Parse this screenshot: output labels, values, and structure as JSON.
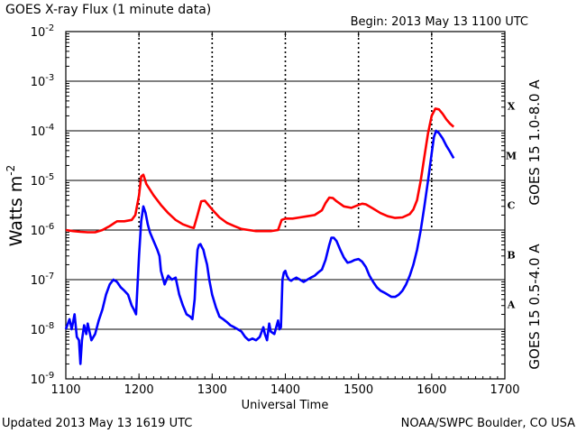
{
  "header": {
    "title": "GOES X-ray Flux (1 minute data)",
    "begin": "Begin: 2013 May 13 1100 UTC"
  },
  "footer": {
    "updated": "Updated 2013 May 13 1619 UTC",
    "credit": "NOAA/SWPC Boulder, CO USA"
  },
  "chart_data": {
    "type": "line",
    "title": "GOES X-ray Flux (1 minute data)",
    "xlabel": "Universal Time",
    "ylabel": "Watts m",
    "ylabel_sup": "-2",
    "yscale": "log",
    "xlim": [
      1100,
      1700
    ],
    "ylim": [
      1e-09,
      0.01
    ],
    "x_ticks": [
      "1100",
      "1200",
      "1300",
      "1400",
      "1500",
      "1600",
      "1700"
    ],
    "y_ticks": [
      {
        "base": "10",
        "exp": "-2"
      },
      {
        "base": "10",
        "exp": "-3"
      },
      {
        "base": "10",
        "exp": "-4"
      },
      {
        "base": "10",
        "exp": "-5"
      },
      {
        "base": "10",
        "exp": "-6"
      },
      {
        "base": "10",
        "exp": "-7"
      },
      {
        "base": "10",
        "exp": "-8"
      },
      {
        "base": "10",
        "exp": "-9"
      }
    ],
    "flare_classes": [
      "X",
      "M",
      "C",
      "B",
      "A"
    ],
    "grid": "horizontal at each decade",
    "series": [
      {
        "name": "GOES 15 1.0-8.0 A",
        "color": "#ff0000",
        "x": [
          1100,
          1110,
          1120,
          1130,
          1140,
          1150,
          1160,
          1170,
          1180,
          1190,
          1195,
          1200,
          1203,
          1206,
          1210,
          1220,
          1230,
          1240,
          1250,
          1260,
          1270,
          1275,
          1280,
          1285,
          1290,
          1300,
          1310,
          1320,
          1330,
          1340,
          1350,
          1360,
          1370,
          1380,
          1390,
          1392,
          1395,
          1400,
          1410,
          1420,
          1430,
          1440,
          1450,
          1455,
          1460,
          1465,
          1470,
          1480,
          1490,
          1500,
          1505,
          1510,
          1520,
          1530,
          1540,
          1550,
          1560,
          1570,
          1575,
          1580,
          1585,
          1590,
          1595,
          1600,
          1605,
          1610,
          1615,
          1620,
          1625,
          1630
        ],
        "values": [
          1e-06,
          9.5e-07,
          9.2e-07,
          9e-07,
          9e-07,
          1e-06,
          1.2e-06,
          1.5e-06,
          1.5e-06,
          1.6e-06,
          2e-06,
          5e-06,
          1.2e-05,
          1.3e-05,
          8.5e-06,
          5e-06,
          3.2e-06,
          2.2e-06,
          1.6e-06,
          1.3e-06,
          1.15e-06,
          1.1e-06,
          2e-06,
          3.8e-06,
          3.9e-06,
          2.6e-06,
          1.8e-06,
          1.4e-06,
          1.2e-06,
          1.05e-06,
          1e-06,
          9.5e-07,
          9.5e-07,
          9.5e-07,
          1e-06,
          1.2e-06,
          1.6e-06,
          1.7e-06,
          1.7e-06,
          1.8e-06,
          1.9e-06,
          2e-06,
          2.5e-06,
          3.5e-06,
          4.5e-06,
          4.4e-06,
          3.8e-06,
          3e-06,
          2.8e-06,
          3.2e-06,
          3.4e-06,
          3.3e-06,
          2.7e-06,
          2.2e-06,
          1.9e-06,
          1.75e-06,
          1.8e-06,
          2.1e-06,
          2.6e-06,
          4e-06,
          1e-05,
          3e-05,
          9e-05,
          0.0002,
          0.00028,
          0.00027,
          0.00022,
          0.00017,
          0.00014,
          0.00012
        ]
      },
      {
        "name": "GOES 15 0.5-4.0 A",
        "color": "#0000ff",
        "x": [
          1100,
          1105,
          1108,
          1112,
          1115,
          1118,
          1120,
          1122,
          1125,
          1128,
          1130,
          1135,
          1140,
          1145,
          1150,
          1155,
          1160,
          1165,
          1170,
          1175,
          1180,
          1185,
          1190,
          1193,
          1196,
          1200,
          1203,
          1206,
          1209,
          1212,
          1215,
          1220,
          1225,
          1228,
          1230,
          1235,
          1240,
          1245,
          1250,
          1255,
          1260,
          1265,
          1270,
          1273,
          1276,
          1278,
          1280,
          1282,
          1284,
          1286,
          1288,
          1290,
          1293,
          1296,
          1300,
          1305,
          1310,
          1315,
          1320,
          1325,
          1330,
          1335,
          1340,
          1345,
          1350,
          1355,
          1360,
          1365,
          1370,
          1372,
          1375,
          1378,
          1380,
          1385,
          1390,
          1392,
          1394,
          1396,
          1398,
          1400,
          1402,
          1405,
          1408,
          1410,
          1415,
          1420,
          1425,
          1430,
          1435,
          1440,
          1445,
          1450,
          1455,
          1460,
          1463,
          1466,
          1470,
          1475,
          1480,
          1485,
          1490,
          1495,
          1500,
          1505,
          1510,
          1515,
          1520,
          1525,
          1530,
          1535,
          1540,
          1545,
          1550,
          1555,
          1560,
          1565,
          1570,
          1575,
          1580,
          1585,
          1590,
          1595,
          1600,
          1603,
          1606,
          1610,
          1615,
          1620,
          1625,
          1630
        ],
        "values": [
          1e-08,
          1.6e-08,
          1e-08,
          2e-08,
          7e-09,
          6e-09,
          2e-09,
          6e-09,
          1.2e-08,
          8e-09,
          1.3e-08,
          6e-09,
          8e-09,
          1.5e-08,
          2.5e-08,
          5e-08,
          8e-08,
          1e-07,
          9e-08,
          7e-08,
          6e-08,
          5e-08,
          3e-08,
          2.5e-08,
          2e-08,
          3e-07,
          1.5e-06,
          3e-06,
          2.2e-06,
          1.3e-06,
          9e-07,
          6e-07,
          4e-07,
          3e-07,
          1.5e-07,
          8e-08,
          1.2e-07,
          1e-07,
          1.1e-07,
          5e-08,
          3e-08,
          2e-08,
          1.8e-08,
          1.6e-08,
          4e-08,
          1.5e-07,
          4e-07,
          5e-07,
          5.2e-07,
          4.5e-07,
          4e-07,
          3e-07,
          2e-07,
          1e-07,
          5e-08,
          2.8e-08,
          1.8e-08,
          1.6e-08,
          1.4e-08,
          1.2e-08,
          1.1e-08,
          1e-08,
          9e-09,
          7e-09,
          6e-09,
          6.5e-09,
          6e-09,
          7e-09,
          1.1e-08,
          8e-09,
          6e-09,
          1.3e-08,
          9e-09,
          8e-09,
          1.5e-08,
          1e-08,
          1.1e-08,
          1e-07,
          1.4e-07,
          1.5e-07,
          1.2e-07,
          1e-07,
          9.5e-08,
          1e-07,
          1.1e-07,
          1e-07,
          9e-08,
          1e-07,
          1.1e-07,
          1.2e-07,
          1.4e-07,
          1.6e-07,
          2.5e-07,
          5e-07,
          7e-07,
          7e-07,
          6e-07,
          4e-07,
          2.8e-07,
          2.2e-07,
          2.3e-07,
          2.5e-07,
          2.6e-07,
          2.3e-07,
          1.8e-07,
          1.2e-07,
          9e-08,
          7e-08,
          6e-08,
          5.5e-08,
          5e-08,
          4.5e-08,
          4.5e-08,
          5e-08,
          6e-08,
          8e-08,
          1.2e-07,
          2e-07,
          4e-07,
          1e-06,
          3e-06,
          1e-05,
          3.5e-05,
          7.5e-05,
          0.0001,
          9e-05,
          7e-05,
          5e-05,
          3.8e-05,
          2.8e-05
        ]
      }
    ]
  }
}
